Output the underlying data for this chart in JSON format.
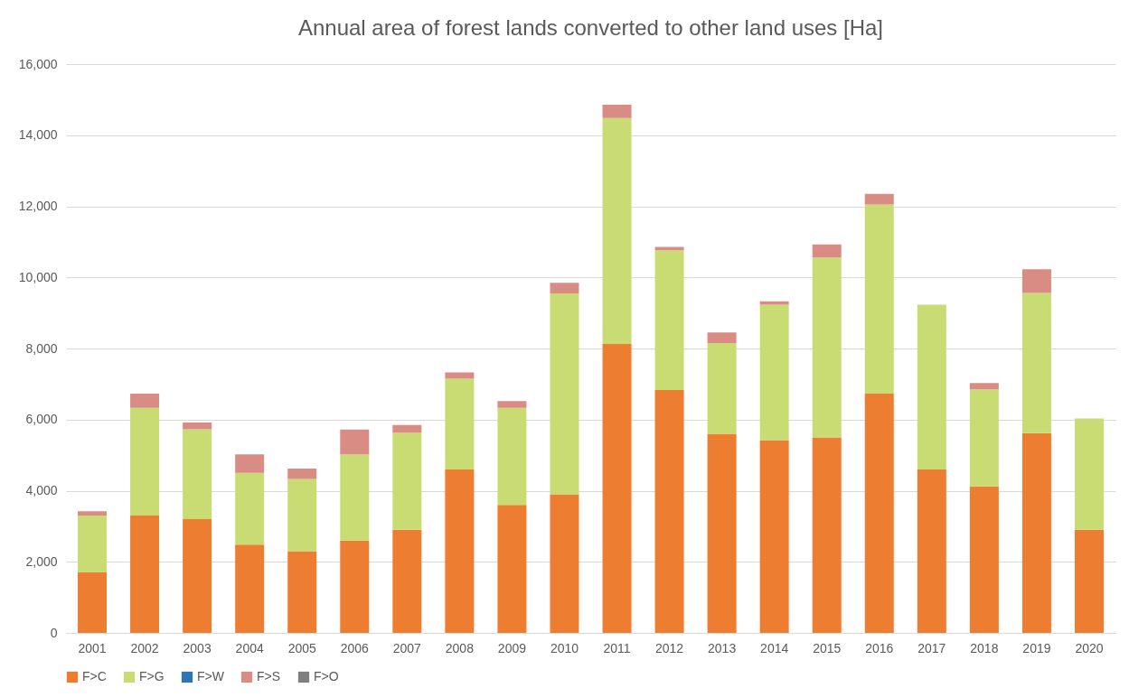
{
  "chart_data": {
    "type": "bar",
    "title": "Annual area of forest lands converted to other land uses [Ha]",
    "categories": [
      "2001",
      "2002",
      "2003",
      "2004",
      "2005",
      "2006",
      "2007",
      "2008",
      "2009",
      "2010",
      "2011",
      "2012",
      "2013",
      "2014",
      "2015",
      "2016",
      "2017",
      "2018",
      "2019",
      "2020"
    ],
    "stacked": true,
    "series": [
      {
        "name": "F>C",
        "color": "#ed7d31",
        "values": [
          1700,
          3300,
          3200,
          2480,
          2300,
          2600,
          2900,
          4600,
          3600,
          3900,
          8130,
          6830,
          5600,
          5420,
          5500,
          6730,
          4600,
          4120,
          5620,
          2900
        ]
      },
      {
        "name": "F>G",
        "color": "#c9dc74",
        "values": [
          1600,
          3030,
          2530,
          2020,
          2030,
          2420,
          2730,
          2550,
          2730,
          5650,
          6350,
          3930,
          2550,
          3810,
          5060,
          5320,
          4630,
          2730,
          3940,
          3130
        ]
      },
      {
        "name": "F>W",
        "color": "#2e75b6",
        "values": [
          0,
          0,
          0,
          0,
          0,
          0,
          0,
          0,
          0,
          0,
          0,
          0,
          0,
          0,
          0,
          0,
          0,
          0,
          0,
          0
        ]
      },
      {
        "name": "F>S",
        "color": "#d88c84",
        "values": [
          120,
          400,
          190,
          520,
          290,
          700,
          220,
          180,
          190,
          300,
          380,
          100,
          300,
          100,
          370,
          300,
          0,
          180,
          670,
          0
        ]
      },
      {
        "name": "F>O",
        "color": "#7f7f7f",
        "values": [
          0,
          0,
          0,
          0,
          0,
          0,
          0,
          0,
          0,
          0,
          0,
          0,
          0,
          0,
          0,
          0,
          0,
          0,
          0,
          0
        ]
      }
    ],
    "ylim": [
      0,
      16000
    ],
    "yticks": [
      {
        "value": 0,
        "label": "0"
      },
      {
        "value": 2000,
        "label": "2,000"
      },
      {
        "value": 4000,
        "label": "4,000"
      },
      {
        "value": 6000,
        "label": "6,000"
      },
      {
        "value": 8000,
        "label": "8,000"
      },
      {
        "value": 10000,
        "label": "10,000"
      },
      {
        "value": 12000,
        "label": "12,000"
      },
      {
        "value": 14000,
        "label": "14,000"
      },
      {
        "value": 16000,
        "label": "16,000"
      }
    ],
    "grid": "y",
    "legend": "bottom"
  }
}
